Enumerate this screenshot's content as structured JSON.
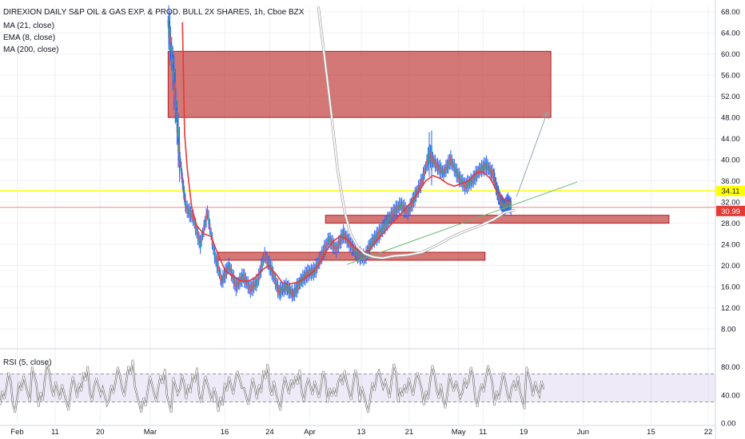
{
  "header": {
    "title": "DIREXION DAILY S&P OIL & GAS EXP. & PROD. BULL 2X SHARES, 1h, Cboe BZX",
    "indicators": [
      "MA (21, close)",
      "EMA (8, close)",
      "MA (200, close)"
    ]
  },
  "rsi_panel": {
    "label": "RSI (5, close)"
  },
  "price_tags": {
    "horizontal_line": "34.11",
    "last_price": "30.99"
  },
  "colors": {
    "candles_up": "#2962ff",
    "candles_down": "#2962ff",
    "ma21": "#e53935",
    "ma200": "#ffffff",
    "ma200_outline": "#9e9e9e",
    "horizontal_line": "#ffff00",
    "last_price_tag": "#e53935",
    "zones": "#b71c1c",
    "trendline": "#66bb6a",
    "projection": "#90a4ae",
    "rsi_line": "#ffffff",
    "rsi_band": "#9575cd"
  },
  "chart_data": [
    {
      "type": "candlestick",
      "title": "DIREXION DAILY S&P OIL & GAS EXP. & PROD. BULL 2X SHARES, 1h, Cboe BZX",
      "x_ticks": [
        "Feb",
        "11",
        "20",
        "Mar",
        "16",
        "24",
        "Apr",
        "13",
        "21",
        "May",
        "11",
        "19",
        "Jun",
        "15",
        "22"
      ],
      "y_ticks": [
        "8.00",
        "12.00",
        "16.00",
        "20.00",
        "24.00",
        "28.00",
        "32.00",
        "36.00",
        "40.00",
        "44.00",
        "48.00",
        "52.00",
        "56.00",
        "60.00",
        "64.00",
        "68.00"
      ],
      "ylim": [
        5,
        69
      ],
      "grid": true,
      "series": [
        {
          "name": "MA (21, close)",
          "points": [
            [
              0.255,
              66
            ],
            [
              0.258,
              45
            ],
            [
              0.262,
              38
            ],
            [
              0.268,
              31
            ],
            [
              0.275,
              27.5
            ],
            [
              0.285,
              26
            ],
            [
              0.295,
              25.5
            ],
            [
              0.305,
              22
            ],
            [
              0.315,
              19
            ],
            [
              0.325,
              18
            ],
            [
              0.335,
              17.2
            ],
            [
              0.345,
              17
            ],
            [
              0.355,
              17.5
            ],
            [
              0.365,
              19
            ],
            [
              0.375,
              20
            ],
            [
              0.385,
              18.5
            ],
            [
              0.395,
              16.7
            ],
            [
              0.405,
              16.5
            ],
            [
              0.415,
              16.8
            ],
            [
              0.425,
              17.5
            ],
            [
              0.435,
              18.5
            ],
            [
              0.445,
              20
            ],
            [
              0.455,
              22.5
            ],
            [
              0.465,
              24.5
            ],
            [
              0.475,
              25.5
            ],
            [
              0.485,
              25
            ],
            [
              0.495,
              23.5
            ],
            [
              0.505,
              22.5
            ],
            [
              0.515,
              22.7
            ],
            [
              0.525,
              24.5
            ],
            [
              0.535,
              26
            ],
            [
              0.545,
              27.5
            ],
            [
              0.555,
              29
            ],
            [
              0.565,
              30.5
            ],
            [
              0.575,
              32
            ],
            [
              0.585,
              34
            ],
            [
              0.595,
              36
            ],
            [
              0.605,
              37
            ],
            [
              0.615,
              36.5
            ],
            [
              0.625,
              35.5
            ],
            [
              0.635,
              35
            ],
            [
              0.645,
              35.5
            ],
            [
              0.655,
              36
            ],
            [
              0.665,
              37.5
            ],
            [
              0.675,
              37.7
            ],
            [
              0.685,
              36.5
            ],
            [
              0.695,
              34
            ],
            [
              0.705,
              32.5
            ],
            [
              0.715,
              32
            ]
          ]
        },
        {
          "name": "MA (200, close)",
          "points": [
            [
              0.445,
              69
            ],
            [
              0.462,
              50
            ],
            [
              0.472,
              38
            ],
            [
              0.482,
              30
            ],
            [
              0.49,
              26
            ],
            [
              0.5,
              23.5
            ],
            [
              0.51,
              22.2
            ],
            [
              0.522,
              21.6
            ],
            [
              0.535,
              21.4
            ],
            [
              0.55,
              21.8
            ],
            [
              0.57,
              22
            ],
            [
              0.59,
              22.5
            ],
            [
              0.61,
              23.8
            ],
            [
              0.63,
              25.3
            ],
            [
              0.65,
              26.5
            ],
            [
              0.67,
              27.5
            ],
            [
              0.69,
              28.7
            ],
            [
              0.705,
              30
            ],
            [
              0.72,
              30.5
            ]
          ]
        },
        {
          "name": "price",
          "points": [
            [
              0.235,
              66
            ],
            [
              0.24,
              60
            ],
            [
              0.245,
              52
            ],
            [
              0.25,
              42
            ],
            [
              0.255,
              36
            ],
            [
              0.26,
              31
            ],
            [
              0.27,
              29
            ],
            [
              0.28,
              24
            ],
            [
              0.29,
              30
            ],
            [
              0.3,
              22
            ],
            [
              0.31,
              17
            ],
            [
              0.32,
              20
            ],
            [
              0.33,
              16
            ],
            [
              0.34,
              18
            ],
            [
              0.35,
              15.5
            ],
            [
              0.36,
              17
            ],
            [
              0.37,
              22
            ],
            [
              0.38,
              19
            ],
            [
              0.39,
              15
            ],
            [
              0.4,
              16
            ],
            [
              0.41,
              14.5
            ],
            [
              0.42,
              17
            ],
            [
              0.43,
              18.5
            ],
            [
              0.44,
              19
            ],
            [
              0.45,
              22
            ],
            [
              0.46,
              25
            ],
            [
              0.47,
              23
            ],
            [
              0.48,
              26
            ],
            [
              0.49,
              24
            ],
            [
              0.5,
              22
            ],
            [
              0.51,
              21.5
            ],
            [
              0.52,
              24.5
            ],
            [
              0.53,
              26
            ],
            [
              0.54,
              28
            ],
            [
              0.55,
              30
            ],
            [
              0.56,
              31.5
            ],
            [
              0.57,
              30
            ],
            [
              0.58,
              33
            ],
            [
              0.59,
              36
            ],
            [
              0.6,
              41
            ],
            [
              0.61,
              39
            ],
            [
              0.62,
              37.5
            ],
            [
              0.63,
              40
            ],
            [
              0.64,
              37
            ],
            [
              0.65,
              35
            ],
            [
              0.66,
              36
            ],
            [
              0.67,
              38
            ],
            [
              0.68,
              39
            ],
            [
              0.69,
              37
            ],
            [
              0.695,
              34
            ],
            [
              0.7,
              32
            ],
            [
              0.705,
              31
            ],
            [
              0.71,
              32
            ],
            [
              0.715,
              31
            ]
          ]
        }
      ],
      "zones": [
        {
          "top": 60.5,
          "bottom": 48,
          "start": 0.235,
          "end": 0.77
        },
        {
          "top": 29.5,
          "bottom": 28,
          "start": 0.455,
          "end": 0.935
        },
        {
          "top": 22.5,
          "bottom": 21,
          "start": 0.305,
          "end": 0.678
        }
      ],
      "horizontal_line": 34.11,
      "last_price": 30.99,
      "trendline": [
        [
          0.485,
          20.2
        ],
        [
          0.807,
          35.8
        ]
      ],
      "projection_arrow": [
        [
          0.722,
          33
        ],
        [
          0.765,
          49
        ]
      ]
    },
    {
      "type": "line",
      "title": "RSI (5, close)",
      "y_ticks": [
        "0.00",
        "40.00",
        "80.00"
      ],
      "ylim": [
        0,
        100
      ],
      "band": [
        30,
        70
      ],
      "series": [
        {
          "name": "RSI (5, close)",
          "values": [
            40,
            60,
            30,
            55,
            45,
            65,
            35,
            70,
            50,
            40,
            30,
            60,
            45,
            75,
            40,
            55,
            35,
            45,
            65,
            50,
            75,
            40,
            30,
            55,
            45,
            65,
            30,
            50,
            60,
            40,
            70,
            35,
            55,
            45,
            25,
            60,
            50,
            65,
            35,
            55,
            40,
            75,
            45,
            30,
            60,
            50,
            70,
            40,
            55,
            45,
            65,
            35,
            50,
            60,
            45,
            70,
            40,
            30,
            55,
            65,
            45,
            75,
            35,
            55,
            45,
            60,
            40,
            70,
            50,
            30,
            60,
            45,
            55,
            65,
            35,
            50,
            70,
            40,
            60,
            45,
            55,
            35,
            65,
            50,
            45
          ]
        }
      ]
    }
  ]
}
